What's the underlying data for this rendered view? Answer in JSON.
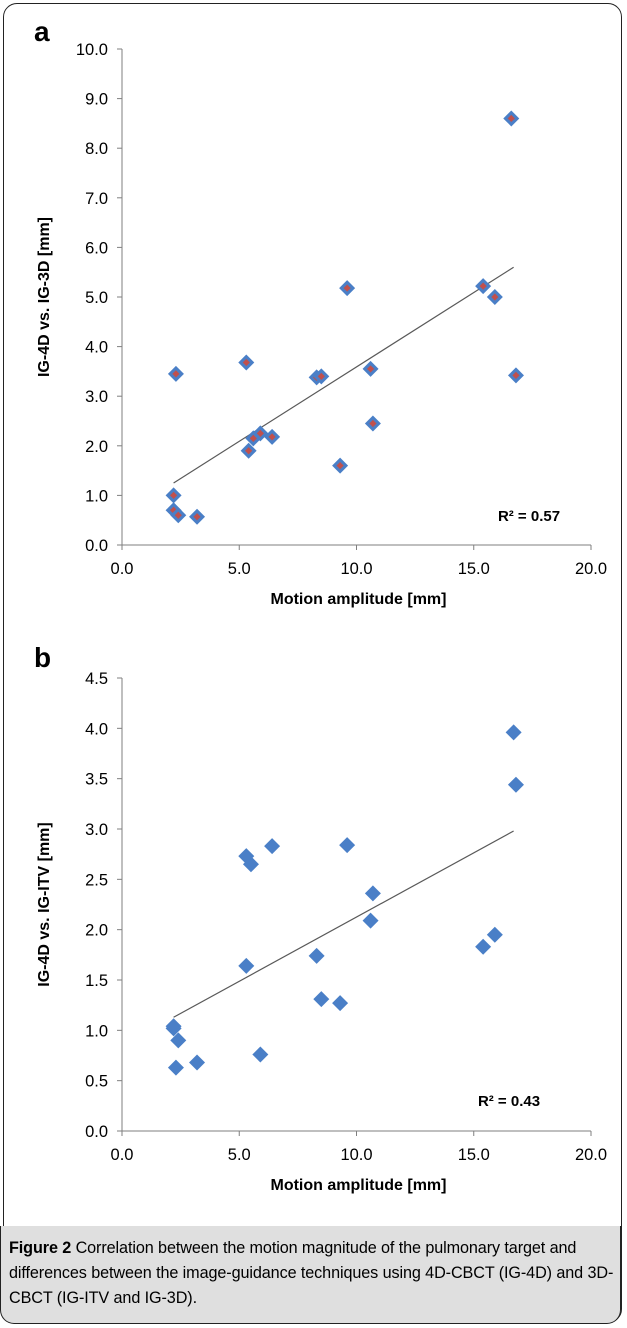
{
  "colors": {
    "marker_fill": "#4a7fc7",
    "marker_center": "#c0504d",
    "trend_line": "#595959",
    "caption_bg": "#dfdfdf"
  },
  "chart_data": [
    {
      "panel_label": "a",
      "type": "scatter",
      "xlabel": "Motion amplitude [mm]",
      "ylabel": "IG-4D vs. IG-3D [mm]",
      "xlim": [
        0,
        20
      ],
      "ylim": [
        0,
        10
      ],
      "xticks": [
        "0.0",
        "5.0",
        "10.0",
        "15.0",
        "20.0"
      ],
      "yticks": [
        "0.0",
        "1.0",
        "2.0",
        "3.0",
        "4.0",
        "5.0",
        "6.0",
        "7.0",
        "8.0",
        "9.0",
        "10.0"
      ],
      "grid": false,
      "marker_style": "blue diamond with red center",
      "r2_label": "R² = 0.57",
      "trendline": {
        "x": [
          2.2,
          16.7
        ],
        "y": [
          1.25,
          5.6
        ]
      },
      "points": [
        {
          "x": 2.2,
          "y": 1.0
        },
        {
          "x": 2.2,
          "y": 0.7
        },
        {
          "x": 2.4,
          "y": 0.6
        },
        {
          "x": 2.3,
          "y": 3.45
        },
        {
          "x": 3.2,
          "y": 0.57
        },
        {
          "x": 5.3,
          "y": 3.68
        },
        {
          "x": 5.4,
          "y": 1.9
        },
        {
          "x": 5.6,
          "y": 2.15
        },
        {
          "x": 5.9,
          "y": 2.25
        },
        {
          "x": 6.4,
          "y": 2.18
        },
        {
          "x": 8.3,
          "y": 3.38
        },
        {
          "x": 8.5,
          "y": 3.4
        },
        {
          "x": 9.3,
          "y": 1.6
        },
        {
          "x": 9.6,
          "y": 5.18
        },
        {
          "x": 10.6,
          "y": 3.55
        },
        {
          "x": 10.7,
          "y": 2.45
        },
        {
          "x": 15.4,
          "y": 5.22
        },
        {
          "x": 15.9,
          "y": 5.0
        },
        {
          "x": 16.6,
          "y": 8.6
        },
        {
          "x": 16.8,
          "y": 3.42
        }
      ]
    },
    {
      "panel_label": "b",
      "type": "scatter",
      "xlabel": "Motion amplitude [mm]",
      "ylabel": "IG-4D vs. IG-ITV [mm]",
      "xlim": [
        0,
        20
      ],
      "ylim": [
        0,
        4.5
      ],
      "xticks": [
        "0.0",
        "5.0",
        "10.0",
        "15.0",
        "20.0"
      ],
      "yticks": [
        "0.0",
        "0.5",
        "1.0",
        "1.5",
        "2.0",
        "2.5",
        "3.0",
        "3.5",
        "4.0",
        "4.5"
      ],
      "grid": false,
      "marker_style": "blue diamond",
      "r2_label": "R² = 0.43",
      "trendline": {
        "x": [
          2.2,
          16.7
        ],
        "y": [
          1.13,
          2.98
        ]
      },
      "points": [
        {
          "x": 2.2,
          "y": 1.04
        },
        {
          "x": 2.2,
          "y": 1.02
        },
        {
          "x": 2.4,
          "y": 0.9
        },
        {
          "x": 2.3,
          "y": 0.63
        },
        {
          "x": 3.2,
          "y": 0.68
        },
        {
          "x": 5.3,
          "y": 2.73
        },
        {
          "x": 5.3,
          "y": 1.64
        },
        {
          "x": 5.5,
          "y": 2.65
        },
        {
          "x": 5.9,
          "y": 0.76
        },
        {
          "x": 6.4,
          "y": 2.83
        },
        {
          "x": 8.3,
          "y": 1.74
        },
        {
          "x": 8.5,
          "y": 1.31
        },
        {
          "x": 9.3,
          "y": 1.27
        },
        {
          "x": 9.6,
          "y": 2.84
        },
        {
          "x": 10.6,
          "y": 2.09
        },
        {
          "x": 10.7,
          "y": 2.36
        },
        {
          "x": 15.4,
          "y": 1.83
        },
        {
          "x": 15.9,
          "y": 1.95
        },
        {
          "x": 16.7,
          "y": 3.96
        },
        {
          "x": 16.8,
          "y": 3.44
        }
      ]
    }
  ],
  "caption": {
    "lead": "Figure 2",
    "text": " Correlation between the motion magnitude of the pulmonary target and differences between the image-guidance techniques using 4D-CBCT (IG-4D) and 3D-CBCT (IG-ITV and IG-3D)."
  }
}
